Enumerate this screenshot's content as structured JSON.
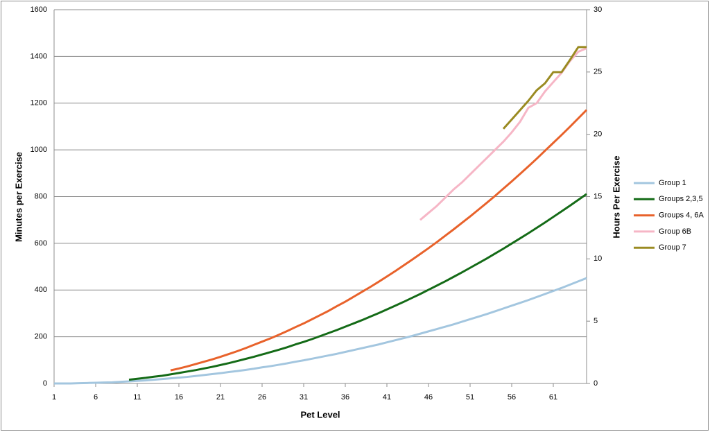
{
  "chart_data": {
    "type": "line",
    "x_label": "Pet Level",
    "y_label": "Minutes per Exercise",
    "y2_label": "Hours Per Exercise",
    "x": [
      1,
      2,
      3,
      4,
      5,
      6,
      7,
      8,
      9,
      10,
      11,
      12,
      13,
      14,
      15,
      16,
      17,
      18,
      19,
      20,
      21,
      22,
      23,
      24,
      25,
      26,
      27,
      28,
      29,
      30,
      31,
      32,
      33,
      34,
      35,
      36,
      37,
      38,
      39,
      40,
      41,
      42,
      43,
      44,
      45,
      46,
      47,
      48,
      49,
      50,
      51,
      52,
      53,
      54,
      55,
      56,
      57,
      58,
      59,
      60,
      61,
      62,
      63,
      64,
      65
    ],
    "xlim": [
      1,
      65
    ],
    "xticks": [
      1,
      6,
      11,
      16,
      21,
      26,
      31,
      36,
      41,
      46,
      51,
      56,
      61
    ],
    "ylim": [
      0,
      1600
    ],
    "yticks": [
      0,
      200,
      400,
      600,
      800,
      1000,
      1200,
      1400,
      1600
    ],
    "y2lim": [
      0,
      30
    ],
    "y2ticks": [
      0,
      5,
      10,
      15,
      20,
      25,
      30
    ],
    "grid": true,
    "legend": "right",
    "series": [
      {
        "name": "Group 1",
        "color": "#a3c6df",
        "values": [
          0,
          0,
          0,
          1,
          2,
          3,
          4,
          5,
          7,
          9,
          11,
          13,
          16,
          19,
          22,
          25,
          28,
          32,
          36,
          40,
          44,
          49,
          53,
          58,
          63,
          69,
          74,
          80,
          86,
          93,
          99,
          106,
          113,
          120,
          127,
          135,
          143,
          151,
          159,
          167,
          176,
          185,
          194,
          203,
          213,
          223,
          233,
          243,
          253,
          264,
          275,
          286,
          297,
          309,
          321,
          333,
          345,
          357,
          370,
          383,
          396,
          409,
          423,
          437,
          451
        ]
      },
      {
        "name": "Groups 2,3,5",
        "color": "#146b17",
        "values": [
          null,
          null,
          null,
          null,
          null,
          null,
          null,
          null,
          null,
          16,
          20,
          24,
          29,
          33,
          39,
          45,
          51,
          57,
          64,
          71,
          79,
          87,
          96,
          105,
          114,
          124,
          134,
          144,
          155,
          167,
          178,
          190,
          203,
          216,
          229,
          243,
          257,
          271,
          286,
          301,
          317,
          333,
          349,
          366,
          383,
          401,
          419,
          437,
          456,
          475,
          495,
          515,
          535,
          556,
          577,
          599,
          621,
          643,
          666,
          689,
          713,
          737,
          761,
          786,
          811
        ]
      },
      {
        "name": "Groups 4, 6A",
        "color": "#e8622b",
        "values": [
          null,
          null,
          null,
          null,
          null,
          null,
          null,
          null,
          null,
          null,
          null,
          null,
          null,
          null,
          56,
          64,
          73,
          83,
          93,
          103,
          114,
          126,
          138,
          151,
          165,
          179,
          193,
          208,
          224,
          241,
          257,
          275,
          293,
          311,
          331,
          350,
          371,
          392,
          413,
          435,
          458,
          481,
          505,
          529,
          554,
          579,
          605,
          632,
          659,
          687,
          715,
          744,
          773,
          803,
          834,
          865,
          897,
          929,
          962,
          996,
          1030,
          1064,
          1099,
          1135,
          1171
        ]
      },
      {
        "name": "Group 6B",
        "color": "#f6b6c6",
        "values": [
          null,
          null,
          null,
          null,
          null,
          null,
          null,
          null,
          null,
          null,
          null,
          null,
          null,
          null,
          null,
          null,
          null,
          null,
          null,
          null,
          null,
          null,
          null,
          null,
          null,
          null,
          null,
          null,
          null,
          null,
          null,
          null,
          null,
          null,
          null,
          null,
          null,
          null,
          null,
          null,
          null,
          null,
          null,
          null,
          700,
          730,
          760,
          795,
          830,
          860,
          895,
          930,
          965,
          1000,
          1035,
          1075,
          1120,
          1180,
          1200,
          1250,
          1290,
          1330,
          1380,
          1420,
          1435
        ]
      },
      {
        "name": "Group 7",
        "color": "#9a8b22",
        "values": [
          null,
          null,
          null,
          null,
          null,
          null,
          null,
          null,
          null,
          null,
          null,
          null,
          null,
          null,
          null,
          null,
          null,
          null,
          null,
          null,
          null,
          null,
          null,
          null,
          null,
          null,
          null,
          null,
          null,
          null,
          null,
          null,
          null,
          null,
          null,
          null,
          null,
          null,
          null,
          null,
          null,
          null,
          null,
          null,
          null,
          null,
          null,
          null,
          null,
          null,
          null,
          null,
          null,
          null,
          1090,
          1130,
          1170,
          1210,
          1255,
          1285,
          1333,
          1333,
          1385,
          1440,
          1440
        ]
      }
    ]
  }
}
